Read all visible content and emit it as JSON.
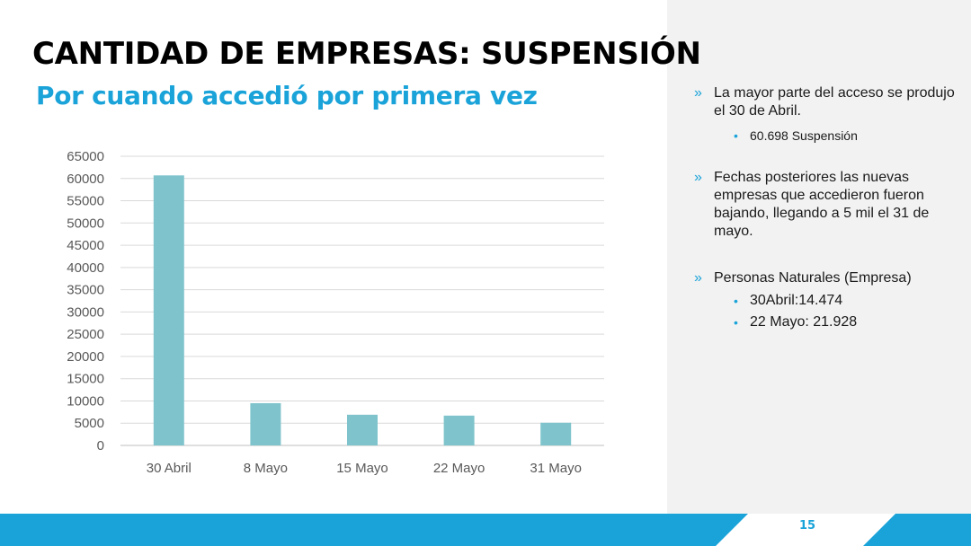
{
  "slide": {
    "title": "CANTIDAD DE EMPRESAS: SUSPENSIÓN",
    "subtitle": "Por cuando accedió por primera vez",
    "page_number": "15"
  },
  "colors": {
    "accent": "#1aa3d9",
    "bar": "#7fc4cc",
    "side_panel": "#f2f2f2"
  },
  "bullets": [
    {
      "text": "La mayor parte del acceso se produjo el 30 de Abril.",
      "subs": [
        "60.698 Suspensión"
      ]
    },
    {
      "text": "Fechas posteriores las nuevas empresas que accedieron fueron bajando, llegando a 5 mil el 31 de mayo.",
      "subs": []
    },
    {
      "text": "Personas Naturales (Empresa)",
      "subs": [
        "30Abril:14.474",
        "22 Mayo: 21.928"
      ]
    }
  ],
  "chart_data": {
    "type": "bar",
    "title": "",
    "xlabel": "",
    "ylabel": "",
    "categories": [
      "30 Abril",
      "8 Mayo",
      "15 Mayo",
      "22 Mayo",
      "31 Mayo"
    ],
    "values": [
      60698,
      9500,
      6900,
      6700,
      5100
    ],
    "ylim": [
      0,
      65000
    ],
    "yticks": [
      0,
      5000,
      10000,
      15000,
      20000,
      25000,
      30000,
      35000,
      40000,
      45000,
      50000,
      55000,
      60000,
      65000
    ],
    "grid": true,
    "legend": "none"
  }
}
